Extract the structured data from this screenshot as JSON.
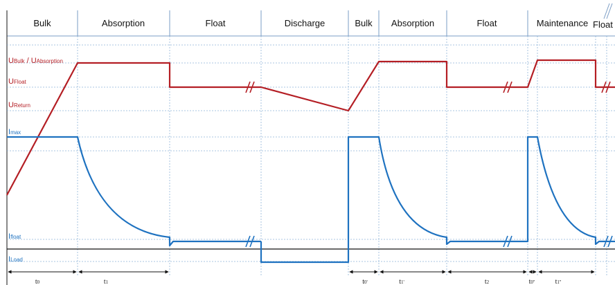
{
  "phases": [
    "Bulk",
    "Absorption",
    "Float",
    "Discharge",
    "Bulk",
    "Absorption",
    "Float",
    "Maintenance",
    "Float"
  ],
  "voltage_levels": {
    "bulk_absorption": {
      "main_a": "U",
      "sub_a": "Bulk",
      "sep": " / ",
      "main_b": "U",
      "sub_b": "Absorption"
    },
    "float": {
      "main": "U",
      "sub": "Float"
    },
    "return": {
      "main": "U",
      "sub": "Return"
    }
  },
  "current_levels": {
    "max": {
      "main": "I",
      "sub": "max"
    },
    "float": {
      "main": "I",
      "sub": "float"
    },
    "load": {
      "main": "I",
      "sub": "Load"
    }
  },
  "time_labels": [
    {
      "main": "t",
      "sub": "0"
    },
    {
      "main": "t",
      "sub": "1"
    },
    {
      "main": "t",
      "sub": "0'"
    },
    {
      "main": "t",
      "sub": "1'"
    },
    {
      "main": "t",
      "sub": "2"
    },
    {
      "main": "t",
      "sub": "0''"
    },
    {
      "main": "t",
      "sub": "1''"
    }
  ],
  "colors": {
    "voltage": "#b41e24",
    "current": "#1e72c0",
    "grid": "#8eb4d8",
    "axis": "#111111"
  }
}
